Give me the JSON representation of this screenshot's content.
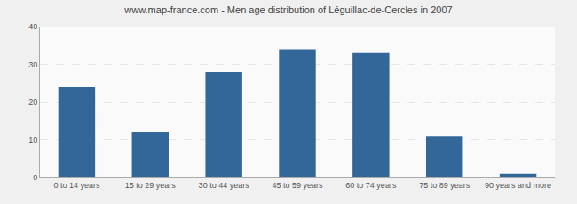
{
  "chart_data": {
    "type": "bar",
    "title": "www.map-france.com - Men age distribution of Léguillac-de-Cercles in 2007",
    "categories": [
      "0 to 14 years",
      "15 to 29 years",
      "30 to 44 years",
      "45 to 59 years",
      "60 to 74 years",
      "75 to 89 years",
      "90 years and more"
    ],
    "values": [
      24,
      12,
      28,
      34,
      33,
      11,
      1
    ],
    "color": "#336699",
    "ylim": [
      0,
      40
    ],
    "yticks": [
      0,
      10,
      20,
      30,
      40
    ],
    "grid": true
  }
}
